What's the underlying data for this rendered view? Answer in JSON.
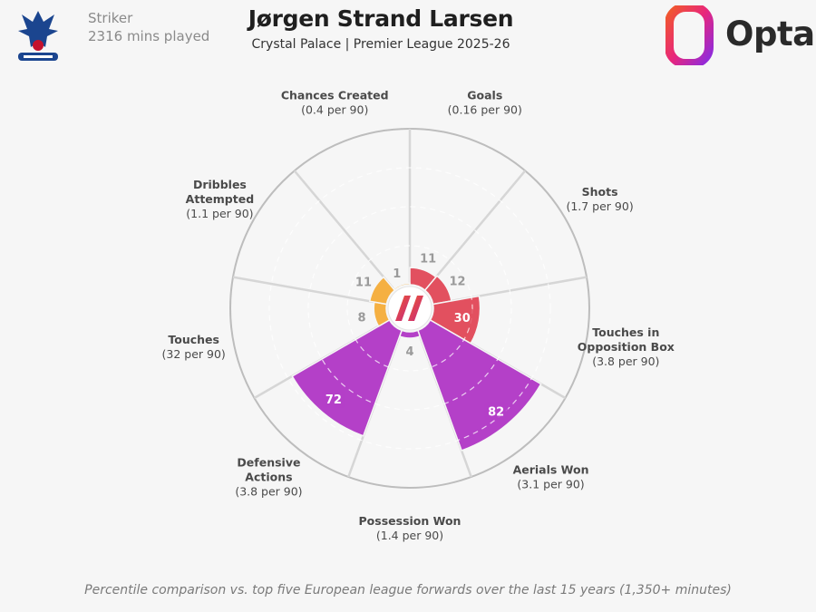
{
  "header": {
    "position": "Striker",
    "minutes": "2316 mins played",
    "player_name": "Jørgen Strand Larsen",
    "team_league": "Crystal Palace | Premier League 2025-26",
    "brand": "Opta",
    "crest_icon": "crystal-palace-eagle-crest"
  },
  "footnote": "Percentile comparison vs. top five European league forwards over the last 15 years (1,350+ minutes)",
  "colors": {
    "attacking": "#e2505f",
    "possession": "#f5b042",
    "defending": "#b440c8",
    "grid": "#d6d6d6",
    "outer_ring": "#bdbdbd",
    "plot_bg": "#f6f6f6"
  },
  "chart_data": {
    "type": "polar-bar",
    "title": "",
    "scale": "percentile",
    "range": [
      0,
      100
    ],
    "categories": [
      {
        "name": "Goals",
        "per90": "(0.16 per 90)",
        "value": 11,
        "group": "attacking"
      },
      {
        "name": "Shots",
        "per90": "(1.7 per 90)",
        "value": 12,
        "group": "attacking"
      },
      {
        "name": "Touches in Opposition Box",
        "per90": "(3.8 per 90)",
        "value": 30,
        "group": "attacking"
      },
      {
        "name": "Aerials Won",
        "per90": "(3.1 per 90)",
        "value": 82,
        "group": "defending"
      },
      {
        "name": "Possession Won",
        "per90": "(1.4 per 90)",
        "value": 4,
        "group": "defending"
      },
      {
        "name": "Defensive Actions",
        "per90": "(3.8 per 90)",
        "value": 72,
        "group": "defending"
      },
      {
        "name": "Touches",
        "per90": "(32 per 90)",
        "value": 8,
        "group": "possession"
      },
      {
        "name": "Dribbles Attempted",
        "per90": "(1.1 per 90)",
        "value": 11,
        "group": "possession"
      },
      {
        "name": "Chances Created",
        "per90": "(0.4 per 90)",
        "value": 1,
        "group": "possession"
      }
    ]
  }
}
